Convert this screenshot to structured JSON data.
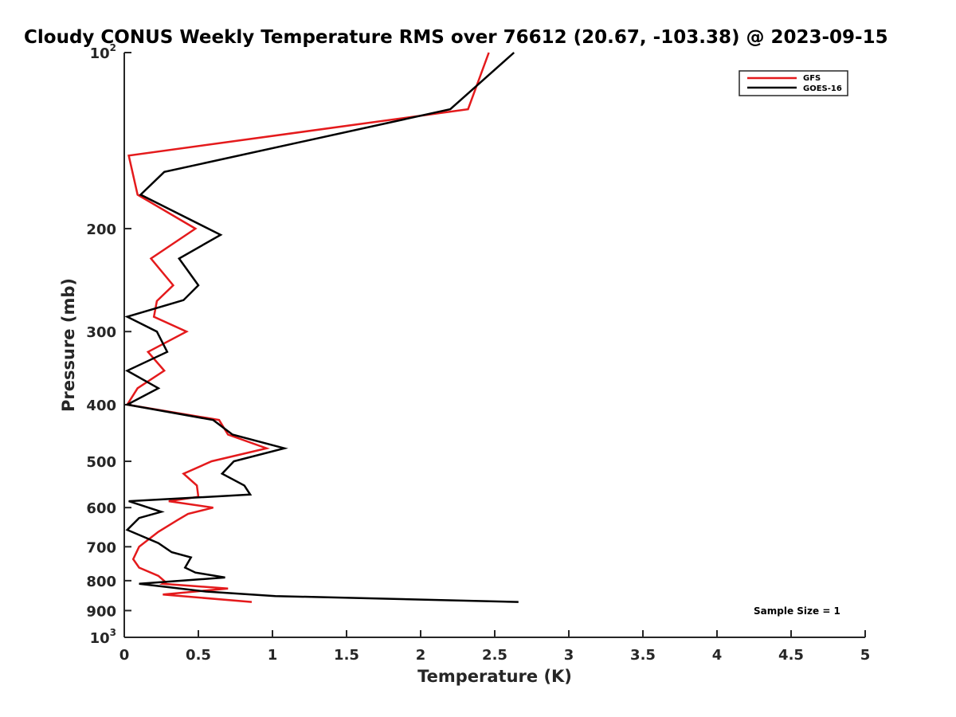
{
  "chart_data": {
    "type": "line",
    "title": "Cloudy CONUS Weekly Temperature RMS over 76612 (20.67, -103.38) @ 2023-09-15",
    "xlabel": "Temperature (K)",
    "ylabel": "Pressure (mb)",
    "xlim": [
      0,
      5
    ],
    "ylim": [
      100,
      1000
    ],
    "yscale": "log",
    "y_reversed": true,
    "grid": false,
    "legend_position": "top-right",
    "x_ticks": [
      {
        "value": 0,
        "label": "0"
      },
      {
        "value": 0.5,
        "label": "0.5"
      },
      {
        "value": 1,
        "label": "1"
      },
      {
        "value": 1.5,
        "label": "1.5"
      },
      {
        "value": 2,
        "label": "2"
      },
      {
        "value": 2.5,
        "label": "2.5"
      },
      {
        "value": 3,
        "label": "3"
      },
      {
        "value": 3.5,
        "label": "3.5"
      },
      {
        "value": 4,
        "label": "4"
      },
      {
        "value": 4.5,
        "label": "4.5"
      },
      {
        "value": 5,
        "label": "5"
      }
    ],
    "y_ticks": [
      {
        "value": 100,
        "base": "10",
        "exp": "2"
      },
      {
        "value": 200,
        "base": "200",
        "exp": ""
      },
      {
        "value": 300,
        "base": "300",
        "exp": ""
      },
      {
        "value": 400,
        "base": "400",
        "exp": ""
      },
      {
        "value": 500,
        "base": "500",
        "exp": ""
      },
      {
        "value": 600,
        "base": "600",
        "exp": ""
      },
      {
        "value": 700,
        "base": "700",
        "exp": ""
      },
      {
        "value": 800,
        "base": "800",
        "exp": ""
      },
      {
        "value": 900,
        "base": "900",
        "exp": ""
      },
      {
        "value": 1000,
        "base": "10",
        "exp": "3"
      }
    ],
    "series": [
      {
        "name": "GFS",
        "color": "#e41a1c",
        "points": [
          [
            2.46,
            100
          ],
          [
            2.32,
            125
          ],
          [
            0.03,
            150
          ],
          [
            0.09,
            175
          ],
          [
            0.48,
            200
          ],
          [
            0.18,
            225
          ],
          [
            0.33,
            250
          ],
          [
            0.22,
            266
          ],
          [
            0.2,
            283
          ],
          [
            0.42,
            300
          ],
          [
            0.16,
            325
          ],
          [
            0.27,
            350
          ],
          [
            0.09,
            375
          ],
          [
            0.02,
            400
          ],
          [
            0.64,
            425
          ],
          [
            0.7,
            450
          ],
          [
            0.96,
            475
          ],
          [
            0.59,
            500
          ],
          [
            0.4,
            525
          ],
          [
            0.49,
            550
          ],
          [
            0.5,
            575
          ],
          [
            0.3,
            585
          ],
          [
            0.6,
            600
          ],
          [
            0.43,
            615
          ],
          [
            0.36,
            630
          ],
          [
            0.23,
            660
          ],
          [
            0.1,
            700
          ],
          [
            0.06,
            735
          ],
          [
            0.1,
            760
          ],
          [
            0.23,
            785
          ],
          [
            0.28,
            805
          ],
          [
            0.26,
            810
          ],
          [
            0.7,
            825
          ],
          [
            0.26,
            845
          ],
          [
            0.86,
            870
          ]
        ]
      },
      {
        "name": "GOES-16",
        "color": "#000000",
        "points": [
          [
            2.63,
            100
          ],
          [
            2.2,
            125
          ],
          [
            0.27,
            160
          ],
          [
            0.11,
            175
          ],
          [
            0.65,
            205
          ],
          [
            0.37,
            225
          ],
          [
            0.5,
            250
          ],
          [
            0.4,
            265
          ],
          [
            0.02,
            283
          ],
          [
            0.22,
            300
          ],
          [
            0.29,
            325
          ],
          [
            0.02,
            350
          ],
          [
            0.23,
            375
          ],
          [
            0.02,
            400
          ],
          [
            0.6,
            425
          ],
          [
            0.73,
            450
          ],
          [
            1.08,
            475
          ],
          [
            0.74,
            500
          ],
          [
            0.66,
            525
          ],
          [
            0.81,
            550
          ],
          [
            0.85,
            570
          ],
          [
            0.03,
            585
          ],
          [
            0.25,
            610
          ],
          [
            0.1,
            625
          ],
          [
            0.02,
            655
          ],
          [
            0.23,
            690
          ],
          [
            0.32,
            715
          ],
          [
            0.45,
            730
          ],
          [
            0.41,
            760
          ],
          [
            0.48,
            775
          ],
          [
            0.68,
            790
          ],
          [
            0.1,
            810
          ],
          [
            0.55,
            835
          ],
          [
            1.02,
            850
          ],
          [
            2.66,
            870
          ]
        ]
      }
    ],
    "annotations": [
      {
        "text": "Sample Size = 1",
        "position": "bottom-right"
      }
    ]
  }
}
